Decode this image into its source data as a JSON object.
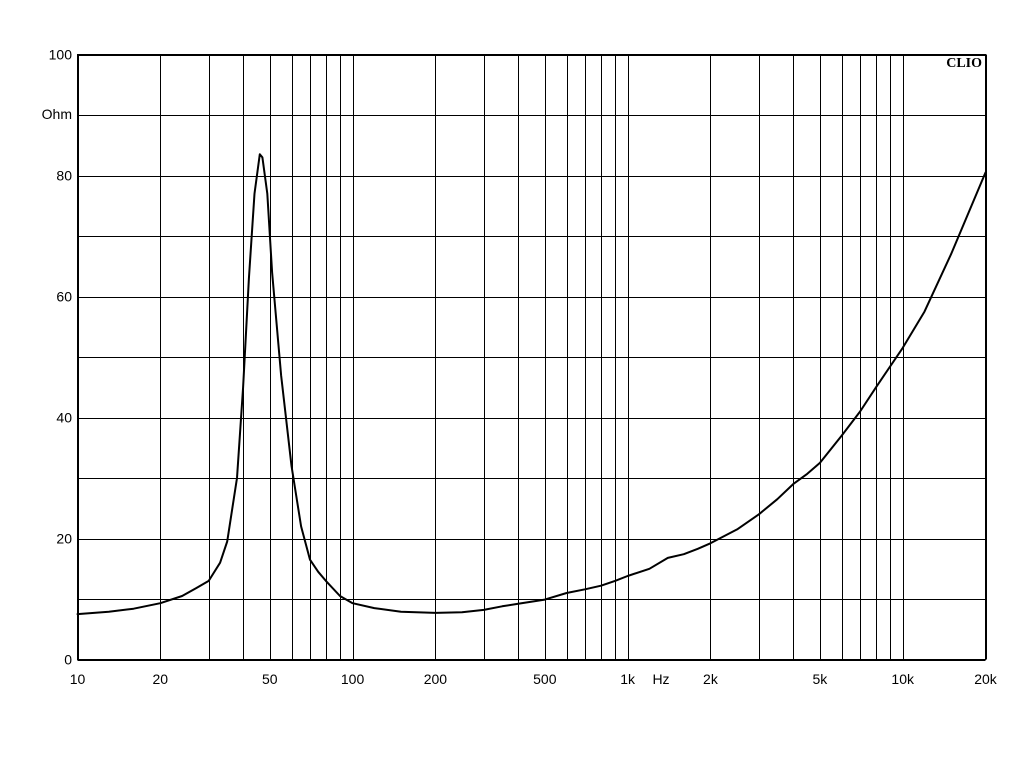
{
  "chart_data": {
    "type": "line",
    "title": "",
    "brand": "CLIO",
    "xlabel": "Hz",
    "ylabel": "Ohm",
    "x_scale": "log",
    "xlim": [
      10,
      20000
    ],
    "ylim": [
      0,
      100
    ],
    "grid": true,
    "x_ticks": [
      {
        "value": 10,
        "label": "10"
      },
      {
        "value": 20,
        "label": "20"
      },
      {
        "value": 50,
        "label": "50"
      },
      {
        "value": 100,
        "label": "100"
      },
      {
        "value": 200,
        "label": "200"
      },
      {
        "value": 500,
        "label": "500"
      },
      {
        "value": 1000,
        "label": "1k"
      },
      {
        "value": 2000,
        "label": "2k"
      },
      {
        "value": 5000,
        "label": "5k"
      },
      {
        "value": 10000,
        "label": "10k"
      },
      {
        "value": 20000,
        "label": "20k"
      }
    ],
    "y_ticks": [
      {
        "value": 0,
        "label": "0"
      },
      {
        "value": 20,
        "label": "20"
      },
      {
        "value": 40,
        "label": "40"
      },
      {
        "value": 60,
        "label": "60"
      },
      {
        "value": 80,
        "label": "80"
      },
      {
        "value": 100,
        "label": "100"
      }
    ],
    "x_grid": [
      10,
      20,
      30,
      40,
      50,
      60,
      70,
      80,
      90,
      100,
      200,
      300,
      400,
      500,
      600,
      700,
      800,
      900,
      1000,
      2000,
      3000,
      4000,
      5000,
      6000,
      7000,
      8000,
      9000,
      10000,
      20000
    ],
    "y_grid": [
      0,
      10,
      20,
      30,
      40,
      50,
      60,
      70,
      80,
      90,
      100
    ],
    "series": [
      {
        "name": "",
        "color": "#000000",
        "x": [
          10,
          13,
          16,
          20,
          24,
          27,
          30,
          33,
          35,
          38,
          40,
          42,
          44,
          46,
          47,
          49,
          51,
          55,
          60,
          65,
          70,
          75,
          80,
          90,
          100,
          120,
          150,
          200,
          250,
          300,
          350,
          400,
          500,
          600,
          700,
          800,
          900,
          1000,
          1200,
          1400,
          1600,
          1800,
          2000,
          2500,
          3000,
          3500,
          4000,
          4500,
          5000,
          6000,
          7000,
          8000,
          10000,
          12000,
          15000,
          20000
        ],
        "y": [
          7.5,
          7.9,
          8.4,
          9.3,
          10.5,
          11.8,
          13.0,
          16.0,
          19.5,
          30.0,
          45.0,
          63.0,
          77.0,
          83.5,
          83.0,
          77.0,
          64.0,
          47.0,
          32.0,
          22.0,
          16.5,
          14.5,
          13.0,
          10.5,
          9.3,
          8.5,
          7.9,
          7.7,
          7.8,
          8.2,
          8.8,
          9.2,
          9.9,
          11.0,
          11.6,
          12.2,
          13.0,
          13.8,
          15.0,
          16.8,
          17.4,
          18.3,
          19.2,
          21.5,
          24.0,
          26.5,
          29.0,
          30.7,
          32.5,
          37.0,
          41.0,
          45.0,
          51.5,
          57.5,
          67.0,
          80.5
        ]
      }
    ]
  }
}
